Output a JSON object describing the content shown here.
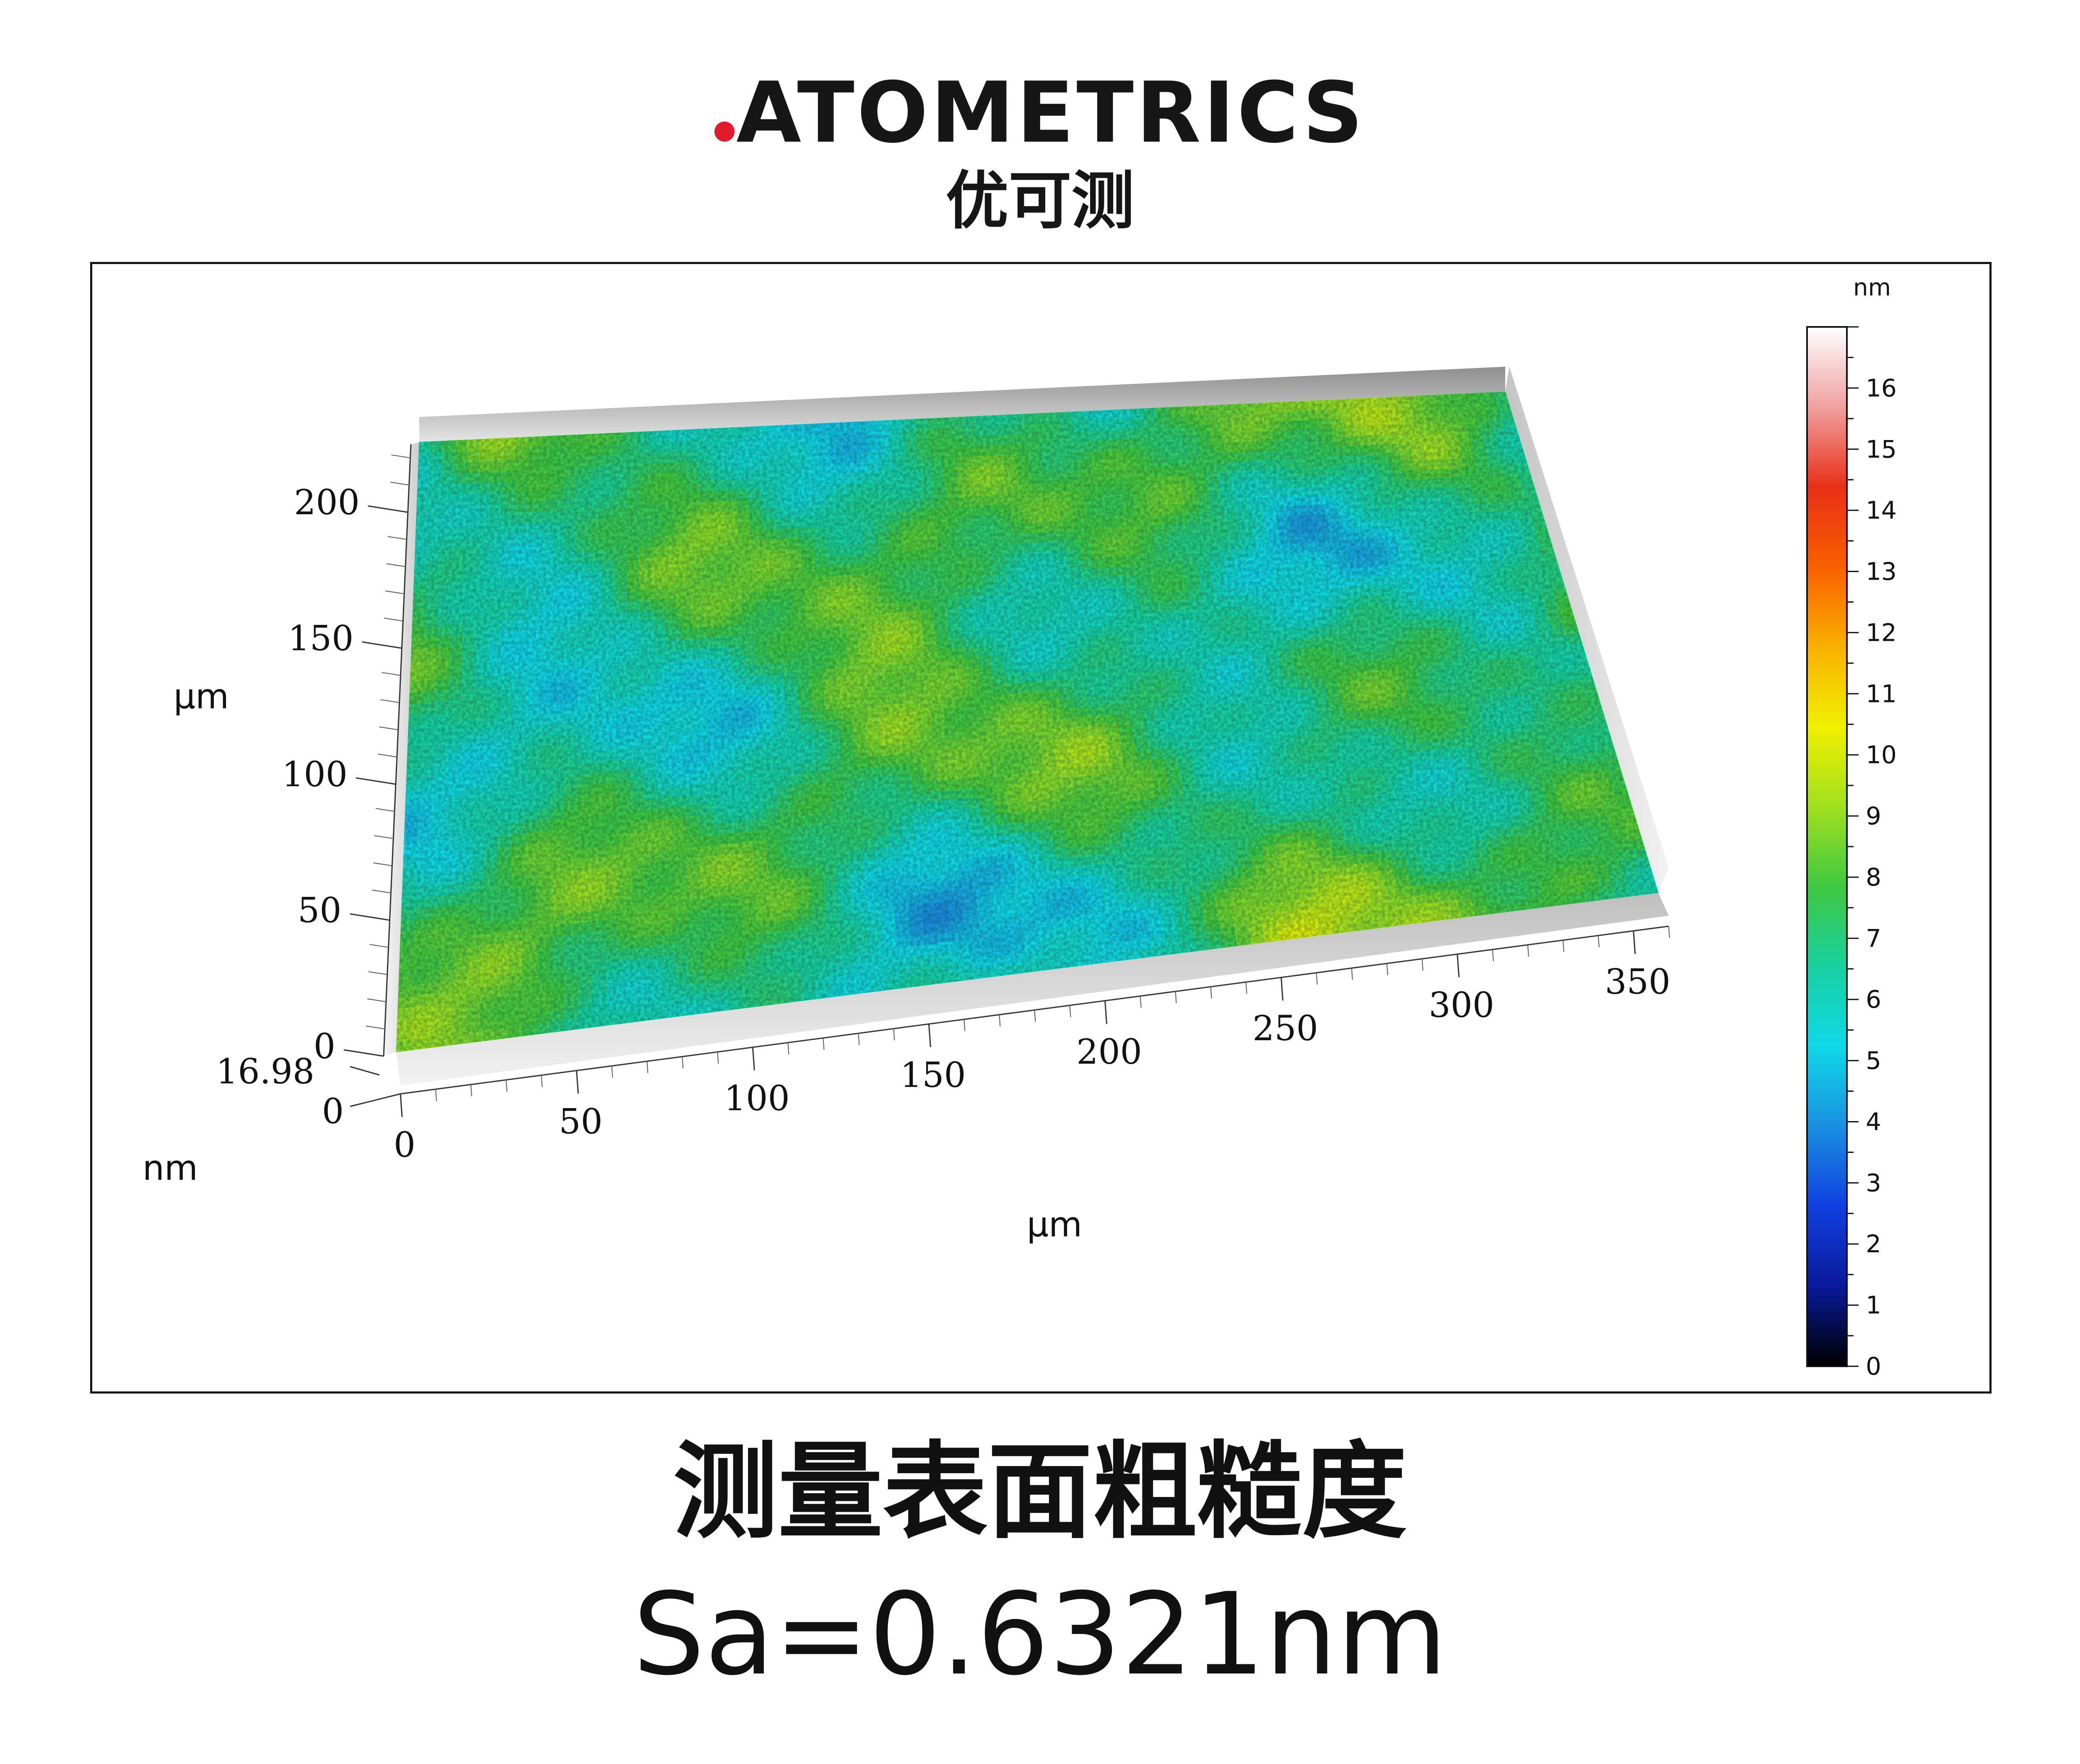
{
  "brand": {
    "logo_text": "ATOMETRICS",
    "logo_cn": "优可测",
    "accent_color": "#e11b2c"
  },
  "caption": {
    "title": "测量表面粗糙度",
    "value": "Sa=0.6321nm"
  },
  "chart_data": {
    "type": "heatmap",
    "style": "3d-surface",
    "title": "",
    "x_axis": {
      "label": "µm",
      "ticks": [
        0,
        50,
        100,
        150,
        200,
        250,
        300,
        350
      ],
      "range": [
        0,
        360
      ]
    },
    "y_axis": {
      "label": "µm",
      "ticks": [
        0,
        50,
        100,
        150,
        200
      ],
      "range": [
        0,
        225
      ]
    },
    "z_axis": {
      "label": "nm",
      "ticks": [
        "16.98",
        "0"
      ],
      "range": [
        0,
        16.98
      ]
    },
    "colorbar": {
      "unit": "nm",
      "ticks": [
        0,
        1,
        2,
        3,
        4,
        5,
        6,
        7,
        8,
        9,
        10,
        11,
        12,
        13,
        14,
        15,
        16
      ],
      "range": [
        0,
        17
      ],
      "colors": [
        "#000000",
        "#0a1a9a",
        "#1040e0",
        "#1a90e0",
        "#10d8e8",
        "#18d0a0",
        "#40c840",
        "#a0e020",
        "#f0f000",
        "#f8b000",
        "#f86000",
        "#e83018",
        "#f0a0a0",
        "#ffffff"
      ]
    },
    "grid": true,
    "legend_position": "right"
  }
}
